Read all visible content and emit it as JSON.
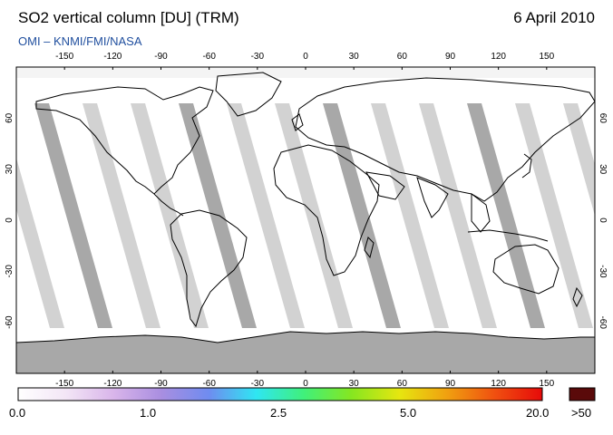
{
  "header": {
    "title": "SO2 vertical column [DU] (TRM)",
    "date": "6 April 2010",
    "credit": "OMI  –  KNMI/FMI/NASA"
  },
  "map": {
    "lon_ticks": [
      "-150",
      "-120",
      "-90",
      "-60",
      "-30",
      "0",
      "30",
      "60",
      "90",
      "120",
      "150"
    ],
    "lat_ticks": [
      "60",
      "30",
      "0",
      "-30",
      "-60"
    ],
    "lon_range": [
      -180,
      180
    ],
    "lat_range": [
      -90,
      90
    ],
    "colors": {
      "no_data_swath": "#d2d2d2",
      "no_data_swath_dark": "#a8a8a8",
      "antarctica": "#a8a8a8",
      "coastline": "#000000",
      "background": "#ffffff"
    }
  },
  "colorbar": {
    "labels": [
      "0.0",
      "1.0",
      "2.5",
      "5.0",
      "20.0"
    ],
    "overflow_label": ">50",
    "overflow_color": "#5a0a0a",
    "stops": [
      "#ffffff",
      "#f3e6f6",
      "#d9b5ea",
      "#a98ee0",
      "#6f8cf0",
      "#2fe6f2",
      "#40f07a",
      "#86e620",
      "#e6e610",
      "#f0a010",
      "#f05010",
      "#e60a0a"
    ]
  }
}
